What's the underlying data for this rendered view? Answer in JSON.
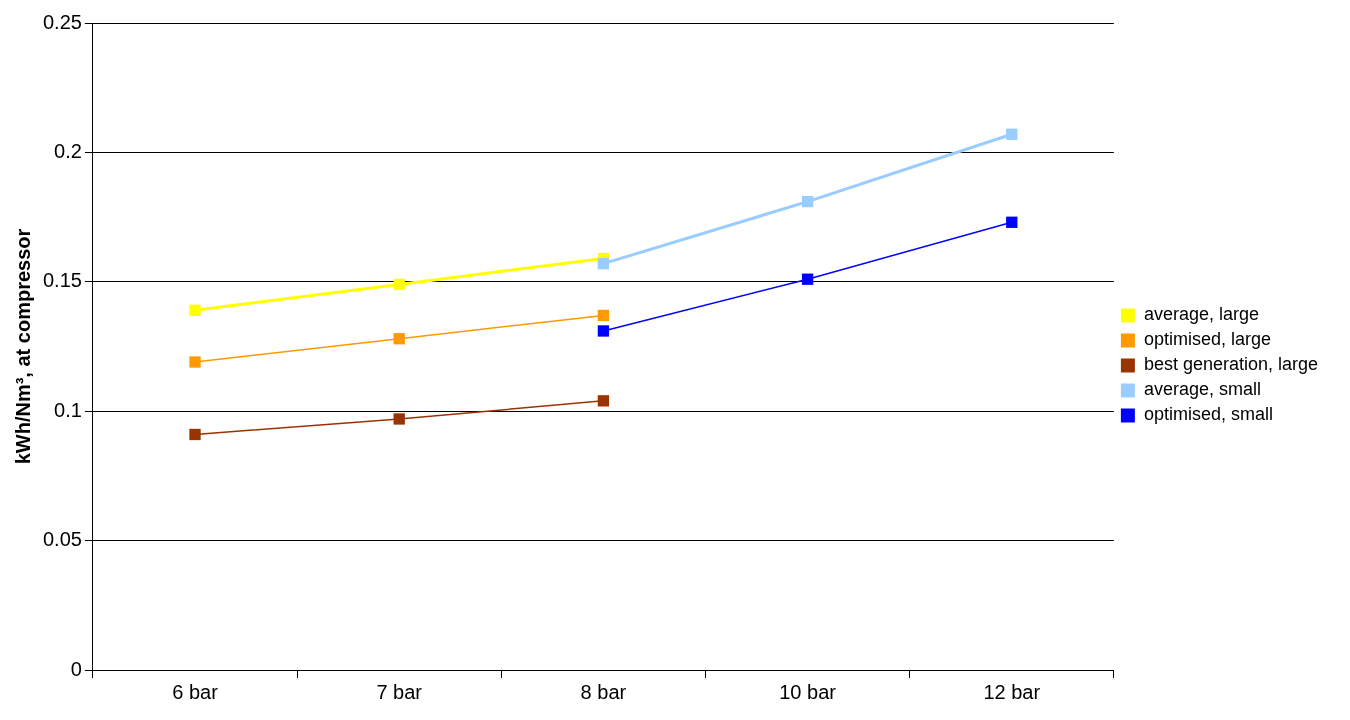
{
  "chart_data": {
    "type": "line",
    "ylabel": "kWh/Nm³, at compressor",
    "categories": [
      "6 bar",
      "7 bar",
      "8 bar",
      "10 bar",
      "12 bar"
    ],
    "series": [
      {
        "name": "average, large",
        "color": "#ffff00",
        "values": [
          0.139,
          0.149,
          0.159,
          null,
          null
        ]
      },
      {
        "name": "optimised, large",
        "color": "#ff9900",
        "values": [
          0.119,
          0.128,
          0.137,
          null,
          null
        ]
      },
      {
        "name": "best generation, large",
        "color": "#993300",
        "values": [
          0.091,
          0.097,
          0.104,
          null,
          null
        ]
      },
      {
        "name": "average, small",
        "color": "#99ccff",
        "values": [
          null,
          null,
          0.157,
          0.181,
          0.207
        ]
      },
      {
        "name": "optimised, small",
        "color": "#0000ff",
        "values": [
          null,
          null,
          0.131,
          0.151,
          0.173
        ]
      }
    ],
    "ylim": [
      0,
      0.25
    ],
    "yticks": [
      0,
      0.05,
      0.1,
      0.15,
      0.2,
      0.25
    ],
    "grid": "y",
    "legend": "right",
    "marker": "square",
    "line_style": "solid"
  }
}
